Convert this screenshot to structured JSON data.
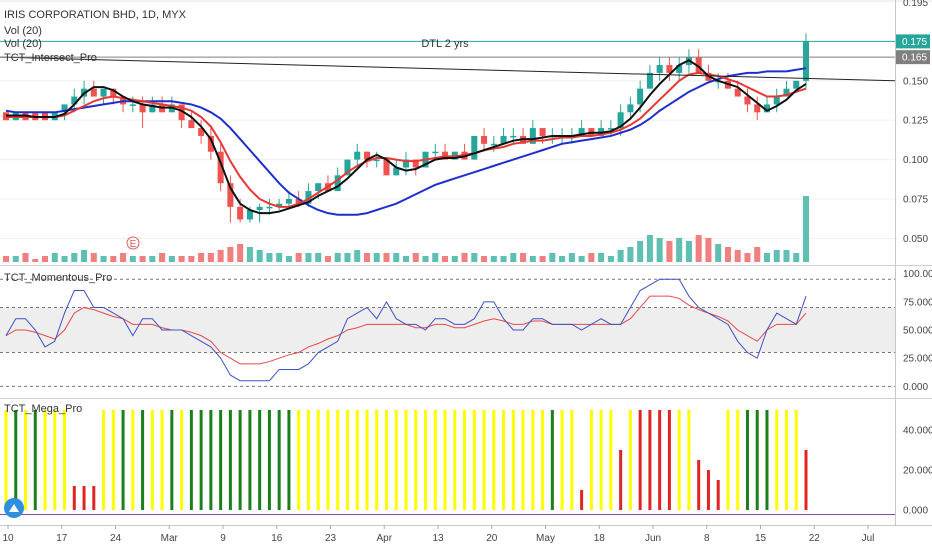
{
  "chart_data": [
    {
      "type": "candlestick",
      "title": "IRIS CORPORATION BHD, 1D, MYX",
      "legend": [
        "Vol (20)",
        "Vol (20)",
        "TCT_Intersect_Pro"
      ],
      "annotation": "DTL 2 yrs",
      "earnings_marker": "E",
      "ylim": [
        0.035,
        0.2
      ],
      "y_ticks": [
        "0.175",
        "0.165",
        "0.150",
        "0.125",
        "0.100",
        "0.075",
        "0.050"
      ],
      "top_tick_partial": "0.195",
      "price_labels": [
        {
          "value": 0.175,
          "text": "0.175",
          "color": "#26a69a"
        },
        {
          "value": 0.165,
          "text": "0.165",
          "color": "#7f7f7f"
        }
      ],
      "x_ticks": [
        "10",
        "17",
        "24",
        "Mar",
        "9",
        "16",
        "23",
        "Apr",
        "13",
        "20",
        "May",
        "18",
        "Jun",
        "8",
        "15",
        "22",
        "Jul"
      ],
      "candles": [
        [
          0.13,
          0.13,
          0.125,
          0.125
        ],
        [
          0.125,
          0.13,
          0.125,
          0.13
        ],
        [
          0.13,
          0.13,
          0.125,
          0.125
        ],
        [
          0.13,
          0.13,
          0.125,
          0.125
        ],
        [
          0.13,
          0.13,
          0.125,
          0.125
        ],
        [
          0.125,
          0.13,
          0.125,
          0.13
        ],
        [
          0.13,
          0.135,
          0.125,
          0.135
        ],
        [
          0.135,
          0.145,
          0.13,
          0.14
        ],
        [
          0.14,
          0.15,
          0.135,
          0.145
        ],
        [
          0.145,
          0.15,
          0.14,
          0.14
        ],
        [
          0.14,
          0.145,
          0.135,
          0.145
        ],
        [
          0.145,
          0.145,
          0.135,
          0.14
        ],
        [
          0.14,
          0.14,
          0.13,
          0.135
        ],
        [
          0.135,
          0.14,
          0.13,
          0.135
        ],
        [
          0.135,
          0.14,
          0.12,
          0.13
        ],
        [
          0.13,
          0.14,
          0.13,
          0.135
        ],
        [
          0.135,
          0.14,
          0.13,
          0.13
        ],
        [
          0.13,
          0.14,
          0.13,
          0.135
        ],
        [
          0.135,
          0.135,
          0.12,
          0.125
        ],
        [
          0.125,
          0.13,
          0.12,
          0.12
        ],
        [
          0.12,
          0.125,
          0.11,
          0.115
        ],
        [
          0.115,
          0.12,
          0.1,
          0.105
        ],
        [
          0.105,
          0.11,
          0.08,
          0.085
        ],
        [
          0.085,
          0.09,
          0.06,
          0.07
        ],
        [
          0.07,
          0.075,
          0.06,
          0.062
        ],
        [
          0.062,
          0.07,
          0.06,
          0.068
        ],
        [
          0.068,
          0.072,
          0.06,
          0.07
        ],
        [
          0.07,
          0.075,
          0.065,
          0.07
        ],
        [
          0.07,
          0.075,
          0.068,
          0.072
        ],
        [
          0.072,
          0.08,
          0.07,
          0.075
        ],
        [
          0.075,
          0.08,
          0.07,
          0.072
        ],
        [
          0.072,
          0.085,
          0.07,
          0.08
        ],
        [
          0.08,
          0.085,
          0.075,
          0.085
        ],
        [
          0.085,
          0.09,
          0.08,
          0.08
        ],
        [
          0.08,
          0.095,
          0.08,
          0.09
        ],
        [
          0.09,
          0.1,
          0.09,
          0.1
        ],
        [
          0.1,
          0.11,
          0.095,
          0.105
        ],
        [
          0.105,
          0.105,
          0.095,
          0.1
        ],
        [
          0.1,
          0.105,
          0.095,
          0.1
        ],
        [
          0.1,
          0.1,
          0.09,
          0.09
        ],
        [
          0.09,
          0.1,
          0.09,
          0.095
        ],
        [
          0.095,
          0.105,
          0.09,
          0.1
        ],
        [
          0.1,
          0.1,
          0.09,
          0.095
        ],
        [
          0.095,
          0.105,
          0.095,
          0.105
        ],
        [
          0.105,
          0.11,
          0.1,
          0.105
        ],
        [
          0.105,
          0.11,
          0.1,
          0.1
        ],
        [
          0.1,
          0.105,
          0.1,
          0.105
        ],
        [
          0.105,
          0.11,
          0.1,
          0.1
        ],
        [
          0.1,
          0.115,
          0.1,
          0.115
        ],
        [
          0.115,
          0.12,
          0.105,
          0.11
        ],
        [
          0.11,
          0.115,
          0.105,
          0.11
        ],
        [
          0.11,
          0.12,
          0.11,
          0.115
        ],
        [
          0.115,
          0.12,
          0.11,
          0.115
        ],
        [
          0.115,
          0.12,
          0.11,
          0.11
        ],
        [
          0.11,
          0.125,
          0.11,
          0.12
        ],
        [
          0.12,
          0.12,
          0.11,
          0.115
        ],
        [
          0.115,
          0.12,
          0.11,
          0.115
        ],
        [
          0.115,
          0.12,
          0.11,
          0.115
        ],
        [
          0.115,
          0.12,
          0.11,
          0.115
        ],
        [
          0.115,
          0.125,
          0.115,
          0.12
        ],
        [
          0.12,
          0.12,
          0.115,
          0.115
        ],
        [
          0.115,
          0.125,
          0.115,
          0.12
        ],
        [
          0.12,
          0.125,
          0.115,
          0.12
        ],
        [
          0.12,
          0.135,
          0.115,
          0.13
        ],
        [
          0.13,
          0.14,
          0.125,
          0.135
        ],
        [
          0.135,
          0.15,
          0.13,
          0.145
        ],
        [
          0.145,
          0.16,
          0.145,
          0.155
        ],
        [
          0.155,
          0.165,
          0.15,
          0.16
        ],
        [
          0.16,
          0.165,
          0.15,
          0.155
        ],
        [
          0.155,
          0.165,
          0.15,
          0.16
        ],
        [
          0.16,
          0.17,
          0.155,
          0.165
        ],
        [
          0.165,
          0.17,
          0.155,
          0.155
        ],
        [
          0.155,
          0.16,
          0.15,
          0.15
        ],
        [
          0.15,
          0.155,
          0.145,
          0.15
        ],
        [
          0.15,
          0.155,
          0.145,
          0.145
        ],
        [
          0.145,
          0.15,
          0.14,
          0.14
        ],
        [
          0.14,
          0.145,
          0.13,
          0.135
        ],
        [
          0.135,
          0.14,
          0.125,
          0.13
        ],
        [
          0.13,
          0.14,
          0.13,
          0.135
        ],
        [
          0.135,
          0.145,
          0.13,
          0.14
        ],
        [
          0.14,
          0.15,
          0.14,
          0.145
        ],
        [
          0.145,
          0.15,
          0.145,
          0.15
        ],
        [
          0.15,
          0.18,
          0.145,
          0.175
        ]
      ],
      "volume": [
        2,
        2,
        3,
        1,
        2,
        3,
        2,
        3,
        4,
        3,
        2,
        2,
        3,
        2,
        2,
        2,
        3,
        2,
        2,
        2,
        3,
        3,
        4,
        5,
        6,
        5,
        4,
        3,
        3,
        2,
        3,
        3,
        3,
        2,
        3,
        3,
        4,
        3,
        3,
        3,
        3,
        2,
        3,
        2,
        3,
        2,
        2,
        3,
        3,
        2,
        2,
        2,
        3,
        3,
        2,
        2,
        3,
        2,
        3,
        2,
        3,
        3,
        2,
        4,
        5,
        7,
        9,
        8,
        7,
        8,
        7,
        9,
        8,
        6,
        5,
        4,
        3,
        5,
        3,
        4,
        4,
        3,
        22
      ],
      "series": [
        {
          "name": "fast",
          "values": [
            0.128,
            0.128,
            0.128,
            0.127,
            0.127,
            0.127,
            0.129,
            0.135,
            0.142,
            0.146,
            0.146,
            0.144,
            0.14,
            0.137,
            0.135,
            0.134,
            0.133,
            0.133,
            0.131,
            0.127,
            0.121,
            0.113,
            0.098,
            0.082,
            0.072,
            0.068,
            0.066,
            0.066,
            0.067,
            0.069,
            0.071,
            0.073,
            0.077,
            0.08,
            0.083,
            0.088,
            0.094,
            0.1,
            0.103,
            0.1,
            0.095,
            0.093,
            0.094,
            0.097,
            0.1,
            0.101,
            0.101,
            0.102,
            0.104,
            0.106,
            0.108,
            0.11,
            0.112,
            0.113,
            0.113,
            0.114,
            0.115,
            0.115,
            0.115,
            0.116,
            0.117,
            0.117,
            0.118,
            0.121,
            0.126,
            0.133,
            0.141,
            0.148,
            0.154,
            0.16,
            0.163,
            0.159,
            0.153,
            0.15,
            0.148,
            0.146,
            0.141,
            0.136,
            0.131,
            0.134,
            0.138,
            0.144,
            0.148
          ]
        },
        {
          "name": "mid",
          "values": [
            0.127,
            0.127,
            0.127,
            0.127,
            0.127,
            0.127,
            0.128,
            0.131,
            0.134,
            0.137,
            0.139,
            0.14,
            0.139,
            0.138,
            0.137,
            0.136,
            0.135,
            0.134,
            0.133,
            0.131,
            0.127,
            0.121,
            0.111,
            0.099,
            0.089,
            0.081,
            0.075,
            0.072,
            0.07,
            0.07,
            0.072,
            0.075,
            0.079,
            0.083,
            0.087,
            0.092,
            0.096,
            0.099,
            0.101,
            0.101,
            0.1,
            0.099,
            0.099,
            0.1,
            0.101,
            0.102,
            0.102,
            0.103,
            0.104,
            0.106,
            0.107,
            0.108,
            0.11,
            0.111,
            0.112,
            0.112,
            0.113,
            0.114,
            0.114,
            0.115,
            0.115,
            0.116,
            0.117,
            0.119,
            0.122,
            0.126,
            0.132,
            0.138,
            0.144,
            0.15,
            0.154,
            0.155,
            0.154,
            0.153,
            0.151,
            0.149,
            0.146,
            0.143,
            0.14,
            0.14,
            0.141,
            0.143,
            0.145
          ]
        },
        {
          "name": "slow",
          "values": [
            0.131,
            0.13,
            0.13,
            0.13,
            0.13,
            0.13,
            0.131,
            0.132,
            0.133,
            0.134,
            0.135,
            0.136,
            0.137,
            0.137,
            0.137,
            0.137,
            0.137,
            0.137,
            0.136,
            0.135,
            0.133,
            0.13,
            0.126,
            0.12,
            0.113,
            0.106,
            0.099,
            0.092,
            0.085,
            0.079,
            0.075,
            0.071,
            0.068,
            0.066,
            0.065,
            0.065,
            0.065,
            0.066,
            0.068,
            0.07,
            0.072,
            0.075,
            0.078,
            0.081,
            0.084,
            0.086,
            0.088,
            0.09,
            0.092,
            0.094,
            0.096,
            0.098,
            0.1,
            0.102,
            0.104,
            0.106,
            0.108,
            0.11,
            0.111,
            0.112,
            0.113,
            0.114,
            0.115,
            0.117,
            0.119,
            0.122,
            0.126,
            0.131,
            0.135,
            0.139,
            0.143,
            0.146,
            0.149,
            0.151,
            0.153,
            0.154,
            0.155,
            0.155,
            0.156,
            0.156,
            0.156,
            0.157,
            0.158
          ]
        }
      ],
      "trendline": {
        "start": 0.165,
        "end": 0.15
      }
    },
    {
      "type": "line",
      "title": "TCT_Momentous_Pro",
      "ylim": [
        -5,
        105
      ],
      "y_ticks": [
        "100.000",
        "75.000",
        "50.000",
        "25.000",
        "0.000"
      ],
      "band": [
        30,
        70
      ],
      "dashed_levels": [
        95,
        70,
        30,
        0
      ],
      "series": [
        {
          "name": "blue",
          "color": "#3f51c4",
          "values": [
            45,
            60,
            60,
            50,
            35,
            40,
            65,
            85,
            85,
            70,
            70,
            65,
            60,
            45,
            60,
            60,
            50,
            50,
            50,
            45,
            40,
            35,
            25,
            10,
            5,
            5,
            5,
            5,
            15,
            15,
            15,
            20,
            30,
            35,
            40,
            60,
            65,
            70,
            60,
            75,
            60,
            55,
            55,
            50,
            60,
            60,
            55,
            55,
            60,
            75,
            75,
            60,
            50,
            50,
            60,
            60,
            55,
            55,
            55,
            50,
            55,
            60,
            55,
            55,
            70,
            85,
            90,
            95,
            95,
            95,
            80,
            70,
            65,
            60,
            55,
            40,
            30,
            25,
            50,
            65,
            60,
            55,
            80
          ]
        },
        {
          "name": "red",
          "color": "#e64a4a",
          "values": [
            45,
            50,
            50,
            48,
            45,
            42,
            50,
            65,
            70,
            68,
            65,
            62,
            60,
            55,
            55,
            55,
            52,
            50,
            50,
            48,
            45,
            40,
            30,
            25,
            20,
            20,
            20,
            22,
            25,
            28,
            30,
            35,
            38,
            42,
            45,
            50,
            52,
            55,
            55,
            55,
            55,
            55,
            52,
            52,
            55,
            55,
            52,
            52,
            55,
            58,
            60,
            58,
            55,
            55,
            58,
            58,
            55,
            55,
            55,
            55,
            55,
            55,
            55,
            55,
            60,
            70,
            80,
            80,
            80,
            78,
            72,
            68,
            65,
            62,
            58,
            50,
            45,
            40,
            50,
            55,
            55,
            55,
            65
          ]
        }
      ]
    },
    {
      "type": "bar",
      "title": "TCT_Mega_Pro",
      "ylim": [
        -2,
        55
      ],
      "y_ticks": [
        "40.000",
        "20.000",
        "0.000"
      ],
      "values": [
        50,
        50,
        50,
        50,
        50,
        50,
        50,
        12,
        12,
        12,
        50,
        50,
        50,
        50,
        50,
        50,
        50,
        50,
        50,
        50,
        50,
        50,
        50,
        50,
        50,
        50,
        50,
        50,
        50,
        50,
        50,
        50,
        50,
        50,
        50,
        50,
        50,
        50,
        50,
        50,
        50,
        50,
        50,
        50,
        50,
        50,
        50,
        50,
        50,
        50,
        50,
        50,
        50,
        50,
        50,
        50,
        50,
        50,
        50,
        10,
        50,
        50,
        50,
        30,
        50,
        50,
        50,
        50,
        50,
        50,
        50,
        25,
        20,
        15,
        50,
        50,
        50,
        50,
        50,
        50,
        50,
        50,
        30
      ],
      "colors": [
        "y",
        "g",
        "y",
        "g",
        "y",
        "y",
        "y",
        "r",
        "r",
        "r",
        "y",
        "y",
        "g",
        "y",
        "g",
        "y",
        "y",
        "g",
        "y",
        "g",
        "g",
        "g",
        "g",
        "g",
        "g",
        "g",
        "g",
        "g",
        "g",
        "g",
        "y",
        "y",
        "y",
        "y",
        "y",
        "y",
        "y",
        "y",
        "y",
        "y",
        "y",
        "y",
        "y",
        "y",
        "y",
        "y",
        "y",
        "y",
        "y",
        "y",
        "y",
        "y",
        "y",
        "y",
        "y",
        "y",
        "g",
        "y",
        "y",
        "r",
        "y",
        "y",
        "y",
        "r",
        "y",
        "r",
        "r",
        "r",
        "r",
        "y",
        "y",
        "r",
        "r",
        "r",
        "y",
        "y",
        "g",
        "g",
        "g",
        "y",
        "y",
        "y",
        "r"
      ]
    }
  ]
}
